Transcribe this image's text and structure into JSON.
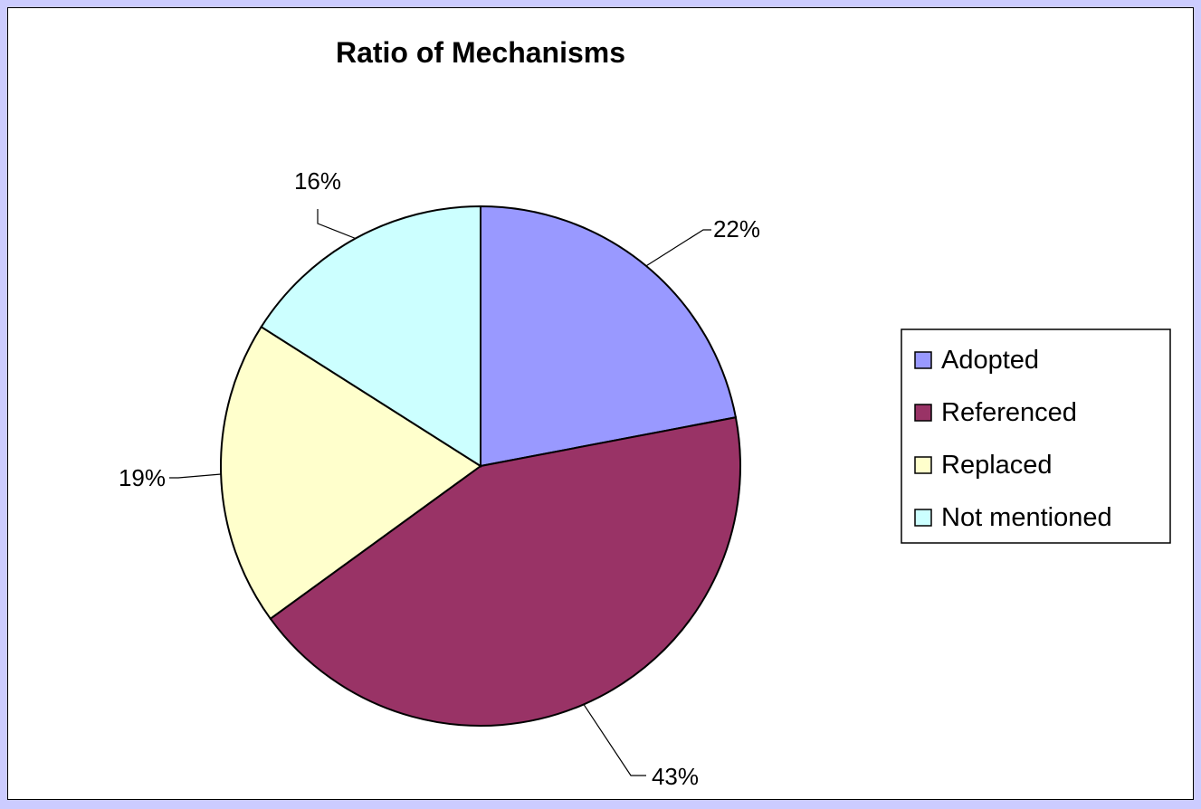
{
  "chart_data": {
    "type": "pie",
    "title": "Ratio of Mechanisms",
    "categories": [
      "Adopted",
      "Referenced",
      "Replaced",
      "Not mentioned"
    ],
    "values": [
      22,
      43,
      19,
      16
    ],
    "labels": [
      "22%",
      "43%",
      "19%",
      "16%"
    ],
    "colors": [
      "#9999ff",
      "#993366",
      "#ffffcc",
      "#ccffff"
    ],
    "start_angle_deg": 0,
    "direction": "clockwise",
    "legend_position": "right"
  }
}
